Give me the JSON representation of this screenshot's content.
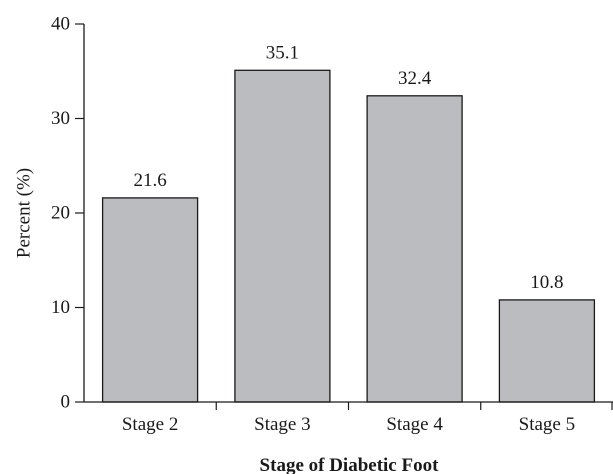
{
  "chart_data": {
    "type": "bar",
    "title": "",
    "xlabel": "Stage of Diabetic Foot",
    "ylabel": "Percent (%)",
    "categories": [
      "Stage 2",
      "Stage 3",
      "Stage 4",
      "Stage 5"
    ],
    "values": [
      21.6,
      35.1,
      32.4,
      10.8
    ],
    "data_labels": [
      "21.6",
      "35.1",
      "32.4",
      "10.8"
    ],
    "ylim": [
      0,
      40
    ],
    "yticks": [
      0,
      10,
      20,
      30,
      40
    ],
    "ytick_labels": [
      "0",
      "10",
      "20",
      "30",
      "40"
    ],
    "grid": false,
    "legend": "none",
    "colors": {
      "bar_fill": "#bbbcc0",
      "bar_stroke": "#1a1a1a",
      "axis": "#1a1a1a",
      "text": "#1a1a1a"
    }
  }
}
